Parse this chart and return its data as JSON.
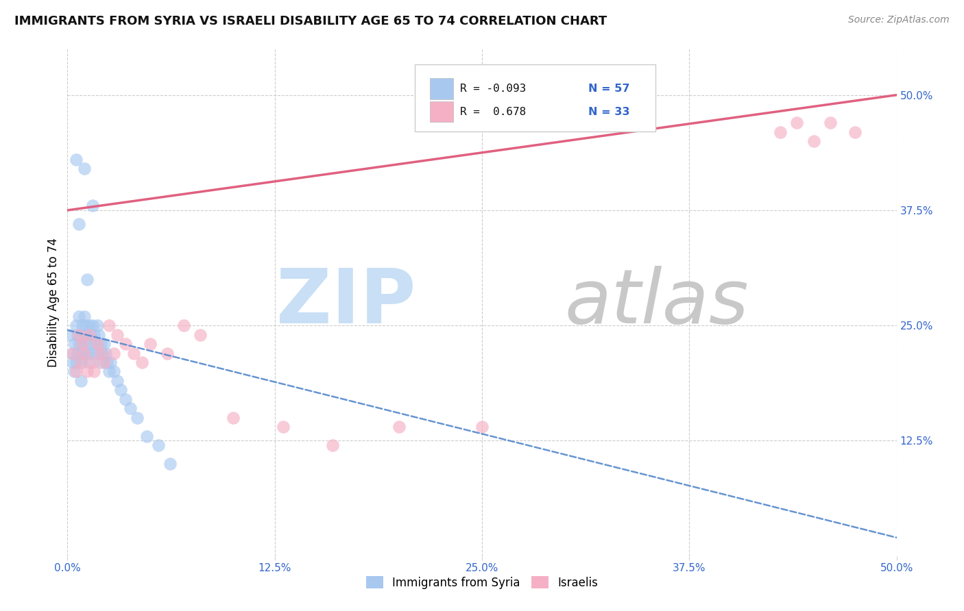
{
  "title": "IMMIGRANTS FROM SYRIA VS ISRAELI DISABILITY AGE 65 TO 74 CORRELATION CHART",
  "source": "Source: ZipAtlas.com",
  "ylabel": "Disability Age 65 to 74",
  "xlim": [
    0.0,
    0.5
  ],
  "ylim": [
    0.0,
    0.55
  ],
  "xtick_vals": [
    0.0,
    0.125,
    0.25,
    0.375,
    0.5
  ],
  "ytick_vals": [
    0.125,
    0.25,
    0.375,
    0.5
  ],
  "color_syria": "#a8c8f0",
  "color_israel": "#f5b0c5",
  "color_syria_line": "#5588cc",
  "color_israel_line": "#e06080",
  "syria_line_x0": 0.0,
  "syria_line_y0": 0.245,
  "syria_line_x1": 0.5,
  "syria_line_y1": 0.02,
  "israel_line_x0": 0.0,
  "israel_line_y0": 0.375,
  "israel_line_x1": 0.5,
  "israel_line_y1": 0.5,
  "syria_scatter_x": [
    0.002,
    0.003,
    0.004,
    0.005,
    0.005,
    0.006,
    0.006,
    0.007,
    0.007,
    0.008,
    0.008,
    0.008,
    0.009,
    0.009,
    0.01,
    0.01,
    0.01,
    0.011,
    0.011,
    0.012,
    0.012,
    0.013,
    0.013,
    0.014,
    0.014,
    0.015,
    0.015,
    0.016,
    0.017,
    0.018,
    0.018,
    0.019,
    0.02,
    0.02,
    0.021,
    0.022,
    0.023,
    0.024,
    0.025,
    0.026,
    0.028,
    0.03,
    0.032,
    0.035,
    0.038,
    0.042,
    0.048,
    0.055,
    0.062,
    0.005,
    0.007,
    0.01,
    0.012,
    0.015,
    0.004,
    0.008,
    0.003
  ],
  "syria_scatter_y": [
    0.24,
    0.22,
    0.23,
    0.25,
    0.21,
    0.24,
    0.22,
    0.26,
    0.23,
    0.24,
    0.22,
    0.21,
    0.25,
    0.23,
    0.26,
    0.24,
    0.22,
    0.25,
    0.23,
    0.24,
    0.22,
    0.25,
    0.21,
    0.24,
    0.23,
    0.25,
    0.22,
    0.24,
    0.23,
    0.25,
    0.22,
    0.24,
    0.23,
    0.21,
    0.22,
    0.23,
    0.22,
    0.21,
    0.2,
    0.21,
    0.2,
    0.19,
    0.18,
    0.17,
    0.16,
    0.15,
    0.13,
    0.12,
    0.1,
    0.43,
    0.36,
    0.42,
    0.3,
    0.38,
    0.2,
    0.19,
    0.21
  ],
  "israel_scatter_x": [
    0.003,
    0.005,
    0.007,
    0.008,
    0.009,
    0.01,
    0.012,
    0.013,
    0.015,
    0.016,
    0.018,
    0.02,
    0.022,
    0.025,
    0.028,
    0.03,
    0.035,
    0.04,
    0.045,
    0.05,
    0.06,
    0.07,
    0.08,
    0.1,
    0.13,
    0.16,
    0.2,
    0.25,
    0.43,
    0.44,
    0.45,
    0.46,
    0.475
  ],
  "israel_scatter_y": [
    0.22,
    0.2,
    0.24,
    0.21,
    0.23,
    0.22,
    0.2,
    0.24,
    0.21,
    0.2,
    0.23,
    0.22,
    0.21,
    0.25,
    0.22,
    0.24,
    0.23,
    0.22,
    0.21,
    0.23,
    0.22,
    0.25,
    0.24,
    0.15,
    0.14,
    0.12,
    0.14,
    0.14,
    0.46,
    0.47,
    0.45,
    0.47,
    0.46
  ],
  "watermark_zip_color": "#c8dff5",
  "watermark_atlas_color": "#c8c8c8"
}
